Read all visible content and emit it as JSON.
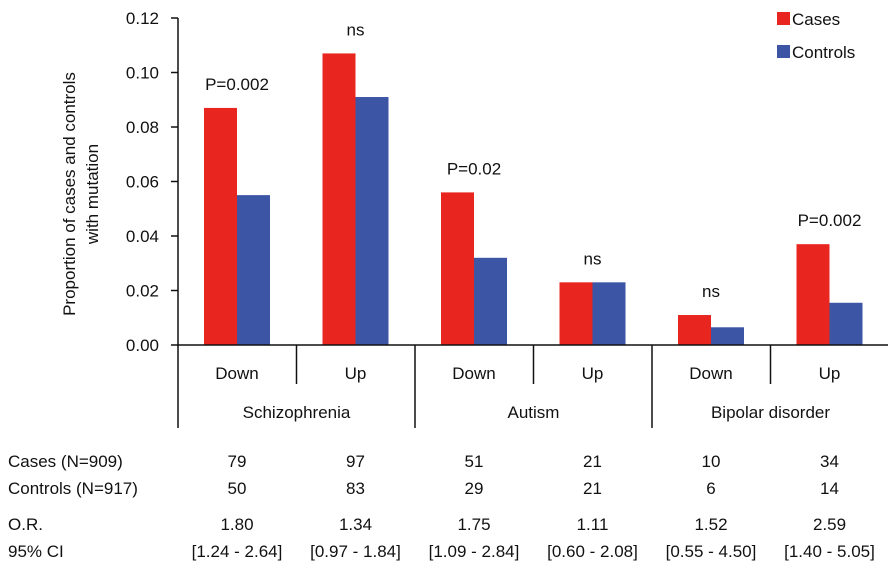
{
  "chart_data": {
    "type": "bar",
    "ylabel_lines": [
      "Proportion of cases and controls",
      "with mutation"
    ],
    "ylim": [
      0,
      0.12
    ],
    "yticks": [
      "0.00",
      "0.02",
      "0.04",
      "0.06",
      "0.08",
      "0.10",
      "0.12"
    ],
    "ytick_values": [
      0,
      0.02,
      0.04,
      0.06,
      0.08,
      0.1,
      0.12
    ],
    "categories": [
      "Down",
      "Up",
      "Down",
      "Up",
      "Down",
      "Up"
    ],
    "groups": [
      {
        "label": "Schizophrenia",
        "span": [
          0,
          1
        ]
      },
      {
        "label": "Autism",
        "span": [
          2,
          3
        ]
      },
      {
        "label": "Bipolar disorder",
        "span": [
          4,
          5
        ]
      }
    ],
    "series": [
      {
        "name": "Cases",
        "color": "#e8251f",
        "values": [
          0.087,
          0.107,
          0.056,
          0.023,
          0.011,
          0.037
        ]
      },
      {
        "name": "Controls",
        "color": "#3c55a5",
        "values": [
          0.055,
          0.091,
          0.032,
          0.023,
          0.0065,
          0.0155
        ]
      }
    ],
    "annotations": [
      "P=0.002",
      "ns",
      "P=0.02",
      "ns",
      "ns",
      "P=0.002"
    ],
    "legend_position": "top-right",
    "table": {
      "rows": [
        {
          "label": "Cases (N=909)",
          "values": [
            "79",
            "97",
            "51",
            "21",
            "10",
            "34"
          ]
        },
        {
          "label": "Controls (N=917)",
          "values": [
            "50",
            "83",
            "29",
            "21",
            "6",
            "14"
          ]
        },
        {
          "label": "O.R.",
          "values": [
            "1.80",
            "1.34",
            "1.75",
            "1.11",
            "1.52",
            "2.59"
          ]
        },
        {
          "label": "95% CI",
          "values": [
            "[1.24 - 2.64]",
            "[0.97 - 1.84]",
            "[1.09 - 2.84]",
            "[0.60 - 2.08]",
            "[0.55 - 4.50]",
            "[1.40 - 5.05]"
          ]
        }
      ]
    }
  }
}
